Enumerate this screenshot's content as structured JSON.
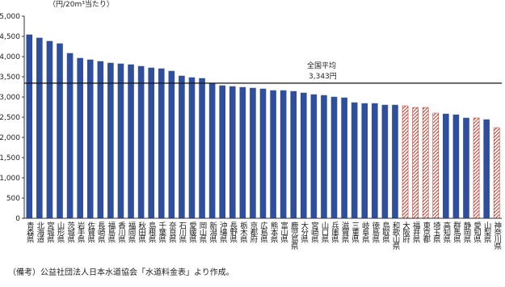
{
  "chart_data": {
    "type": "bar",
    "y_label": "（円/20m³当たり）",
    "categories": [
      "青森県",
      "北海道",
      "宮城県",
      "山形県",
      "茨城県",
      "岩手県",
      "佐賀県",
      "長崎県",
      "福島県",
      "香川県",
      "福岡県",
      "秋田県",
      "島根県",
      "千葉県",
      "奈良県",
      "石川県",
      "愛媛県",
      "岡山県",
      "新潟県",
      "沖縄県",
      "長野県",
      "栃木県",
      "京都府",
      "広島県",
      "熊本県",
      "富山県",
      "鹿児島県",
      "大分県",
      "宮崎県",
      "山口県",
      "兵庫県",
      "滋賀県",
      "三重県",
      "岐阜県",
      "徳島県",
      "鳥取県",
      "和歌山県",
      "大阪府",
      "福井県",
      "東京都",
      "埼玉県",
      "高知県",
      "群馬県",
      "静岡県",
      "愛知県",
      "山梨県",
      "神奈川県"
    ],
    "values": [
      4540,
      4460,
      4380,
      4320,
      4080,
      3960,
      3920,
      3880,
      3840,
      3820,
      3800,
      3760,
      3720,
      3700,
      3640,
      3520,
      3480,
      3460,
      3340,
      3280,
      3260,
      3240,
      3220,
      3200,
      3160,
      3160,
      3140,
      3100,
      3060,
      3040,
      3000,
      2980,
      2860,
      2840,
      2840,
      2800,
      2800,
      2780,
      2740,
      2740,
      2600,
      2580,
      2560,
      2480,
      2480,
      2440,
      2240
    ],
    "hatched": [
      false,
      false,
      false,
      false,
      false,
      false,
      false,
      false,
      false,
      false,
      false,
      false,
      false,
      false,
      false,
      false,
      false,
      false,
      false,
      false,
      false,
      false,
      false,
      false,
      false,
      false,
      false,
      false,
      false,
      false,
      false,
      false,
      false,
      false,
      false,
      false,
      false,
      true,
      true,
      true,
      true,
      false,
      false,
      false,
      true,
      false,
      true
    ],
    "color": "#2f4f9c",
    "hatch_color": "#c0392b",
    "average": {
      "label": "全国平均",
      "value": 3343,
      "value_label": "3,343円"
    },
    "ylim": [
      0,
      5000
    ],
    "yticks": [
      0,
      {
        "value": 500,
        "label": "500"
      },
      {
        "value": 1000,
        "label": "1,000"
      },
      {
        "value": 1500,
        "label": "1,500"
      },
      {
        "value": 2000,
        "label": "2,000"
      },
      {
        "value": 2500,
        "label": "2,500"
      },
      {
        "value": 3000,
        "label": "3,000"
      },
      {
        "value": 3500,
        "label": "3,500"
      },
      {
        "value": 4000,
        "label": "4,000"
      },
      {
        "value": 4500,
        "label": "4,500"
      },
      {
        "value": 5000,
        "label": "5,000"
      }
    ],
    "grid": false
  },
  "note": "（備考）公益社団法人日本水道協会「水道料金表」より作成。"
}
